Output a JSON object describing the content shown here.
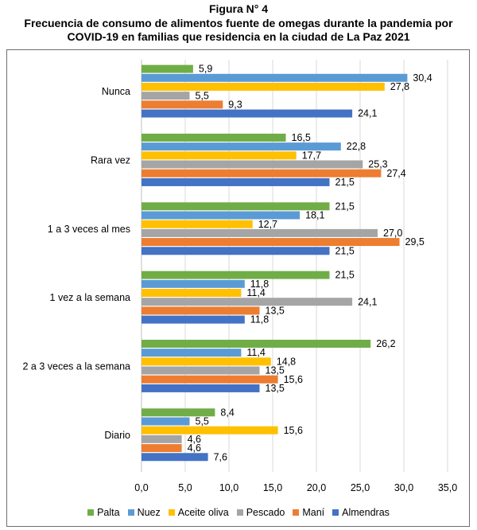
{
  "figure_label": "Figura N° 4",
  "title_line1": "Frecuencia de consumo de alimentos fuente de omegas durante la pandemia por",
  "title_line2": "COVID-19 en familias que residencia en la ciudad de La Paz 2021",
  "chart_data": {
    "type": "bar",
    "orientation": "horizontal",
    "categories": [
      "Nunca",
      "Rara vez",
      "1 a 3 veces al mes",
      "1 vez a la semana",
      "2 a 3 veces a la semana",
      "Diario"
    ],
    "series": [
      {
        "name": "Palta",
        "color": "#70ad47",
        "values": [
          5.9,
          16.5,
          21.5,
          21.5,
          26.2,
          8.4
        ],
        "labels": [
          "5,9",
          "16,5",
          "21,5",
          "21,5",
          "26,2",
          "8,4"
        ]
      },
      {
        "name": "Nuez",
        "color": "#5b9bd5",
        "values": [
          30.4,
          22.8,
          18.1,
          11.8,
          11.4,
          5.5
        ],
        "labels": [
          "30,4",
          "22,8",
          "18,1",
          "11,8",
          "11,4",
          "5,5"
        ]
      },
      {
        "name": "Aceite oliva",
        "color": "#ffc000",
        "values": [
          27.8,
          17.7,
          12.7,
          11.4,
          14.8,
          15.6
        ],
        "labels": [
          "27,8",
          "17,7",
          "12,7",
          "11,4",
          "14,8",
          "15,6"
        ]
      },
      {
        "name": "Pescado",
        "color": "#a5a5a5",
        "values": [
          5.5,
          25.3,
          27.0,
          24.1,
          13.5,
          4.6
        ],
        "labels": [
          "5,5",
          "25,3",
          "27,0",
          "24,1",
          "13,5",
          "4,6"
        ]
      },
      {
        "name": "Maní",
        "color": "#ed7d31",
        "values": [
          9.3,
          27.4,
          29.5,
          13.5,
          15.6,
          4.6
        ],
        "labels": [
          "9,3",
          "27,4",
          "29,5",
          "13,5",
          "15,6",
          "4,6"
        ]
      },
      {
        "name": "Almendras",
        "color": "#4472c4",
        "values": [
          24.1,
          21.5,
          21.5,
          11.8,
          13.5,
          7.6
        ],
        "labels": [
          "24,1",
          "21,5",
          "21,5",
          "11,8",
          "13,5",
          "7,6"
        ]
      }
    ],
    "x_ticks": [
      "0,0",
      "5,0",
      "10,0",
      "15,0",
      "20,0",
      "25,0",
      "30,0",
      "35,0"
    ],
    "xlim": [
      0,
      35
    ],
    "grid": "vertical",
    "legend_position": "bottom"
  }
}
